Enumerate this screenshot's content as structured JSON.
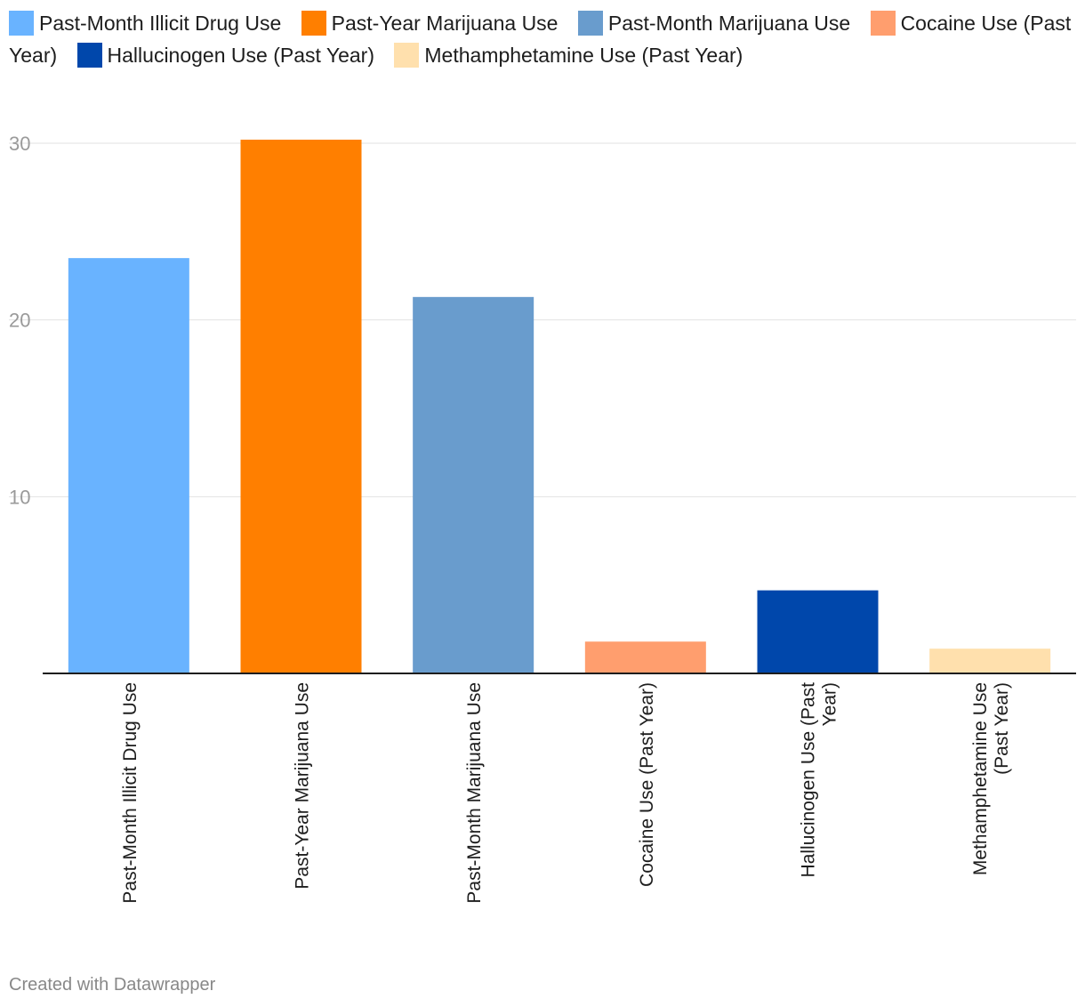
{
  "chart_data": {
    "type": "bar",
    "categories": [
      "Past-Month Illicit Drug Use",
      "Past-Year Marijuana Use",
      "Past-Month Marijuana Use",
      "Cocaine Use (Past Year)",
      "Hallucinogen Use (Past Year)",
      "Methamphetamine Use (Past Year)"
    ],
    "label_lines": [
      [
        "Past-Month Illicit Drug Use"
      ],
      [
        "Past-Year Marijuana Use"
      ],
      [
        "Past-Month Marijuana Use"
      ],
      [
        "Cocaine Use (Past Year)"
      ],
      [
        "Hallucinogen Use (Past",
        "Year)"
      ],
      [
        "Methamphetamine Use",
        "(Past Year)"
      ]
    ],
    "values": [
      23.5,
      30.2,
      21.3,
      1.8,
      4.7,
      1.4
    ],
    "colors": [
      "#69b3ff",
      "#ff7f00",
      "#699ccd",
      "#ff9e6e",
      "#0047ab",
      "#ffe0ad"
    ],
    "ylim": [
      0,
      30
    ],
    "yticks": [
      10,
      20,
      30
    ],
    "grid": true,
    "legend": "top"
  },
  "footer": {
    "credit": "Created with Datawrapper"
  }
}
